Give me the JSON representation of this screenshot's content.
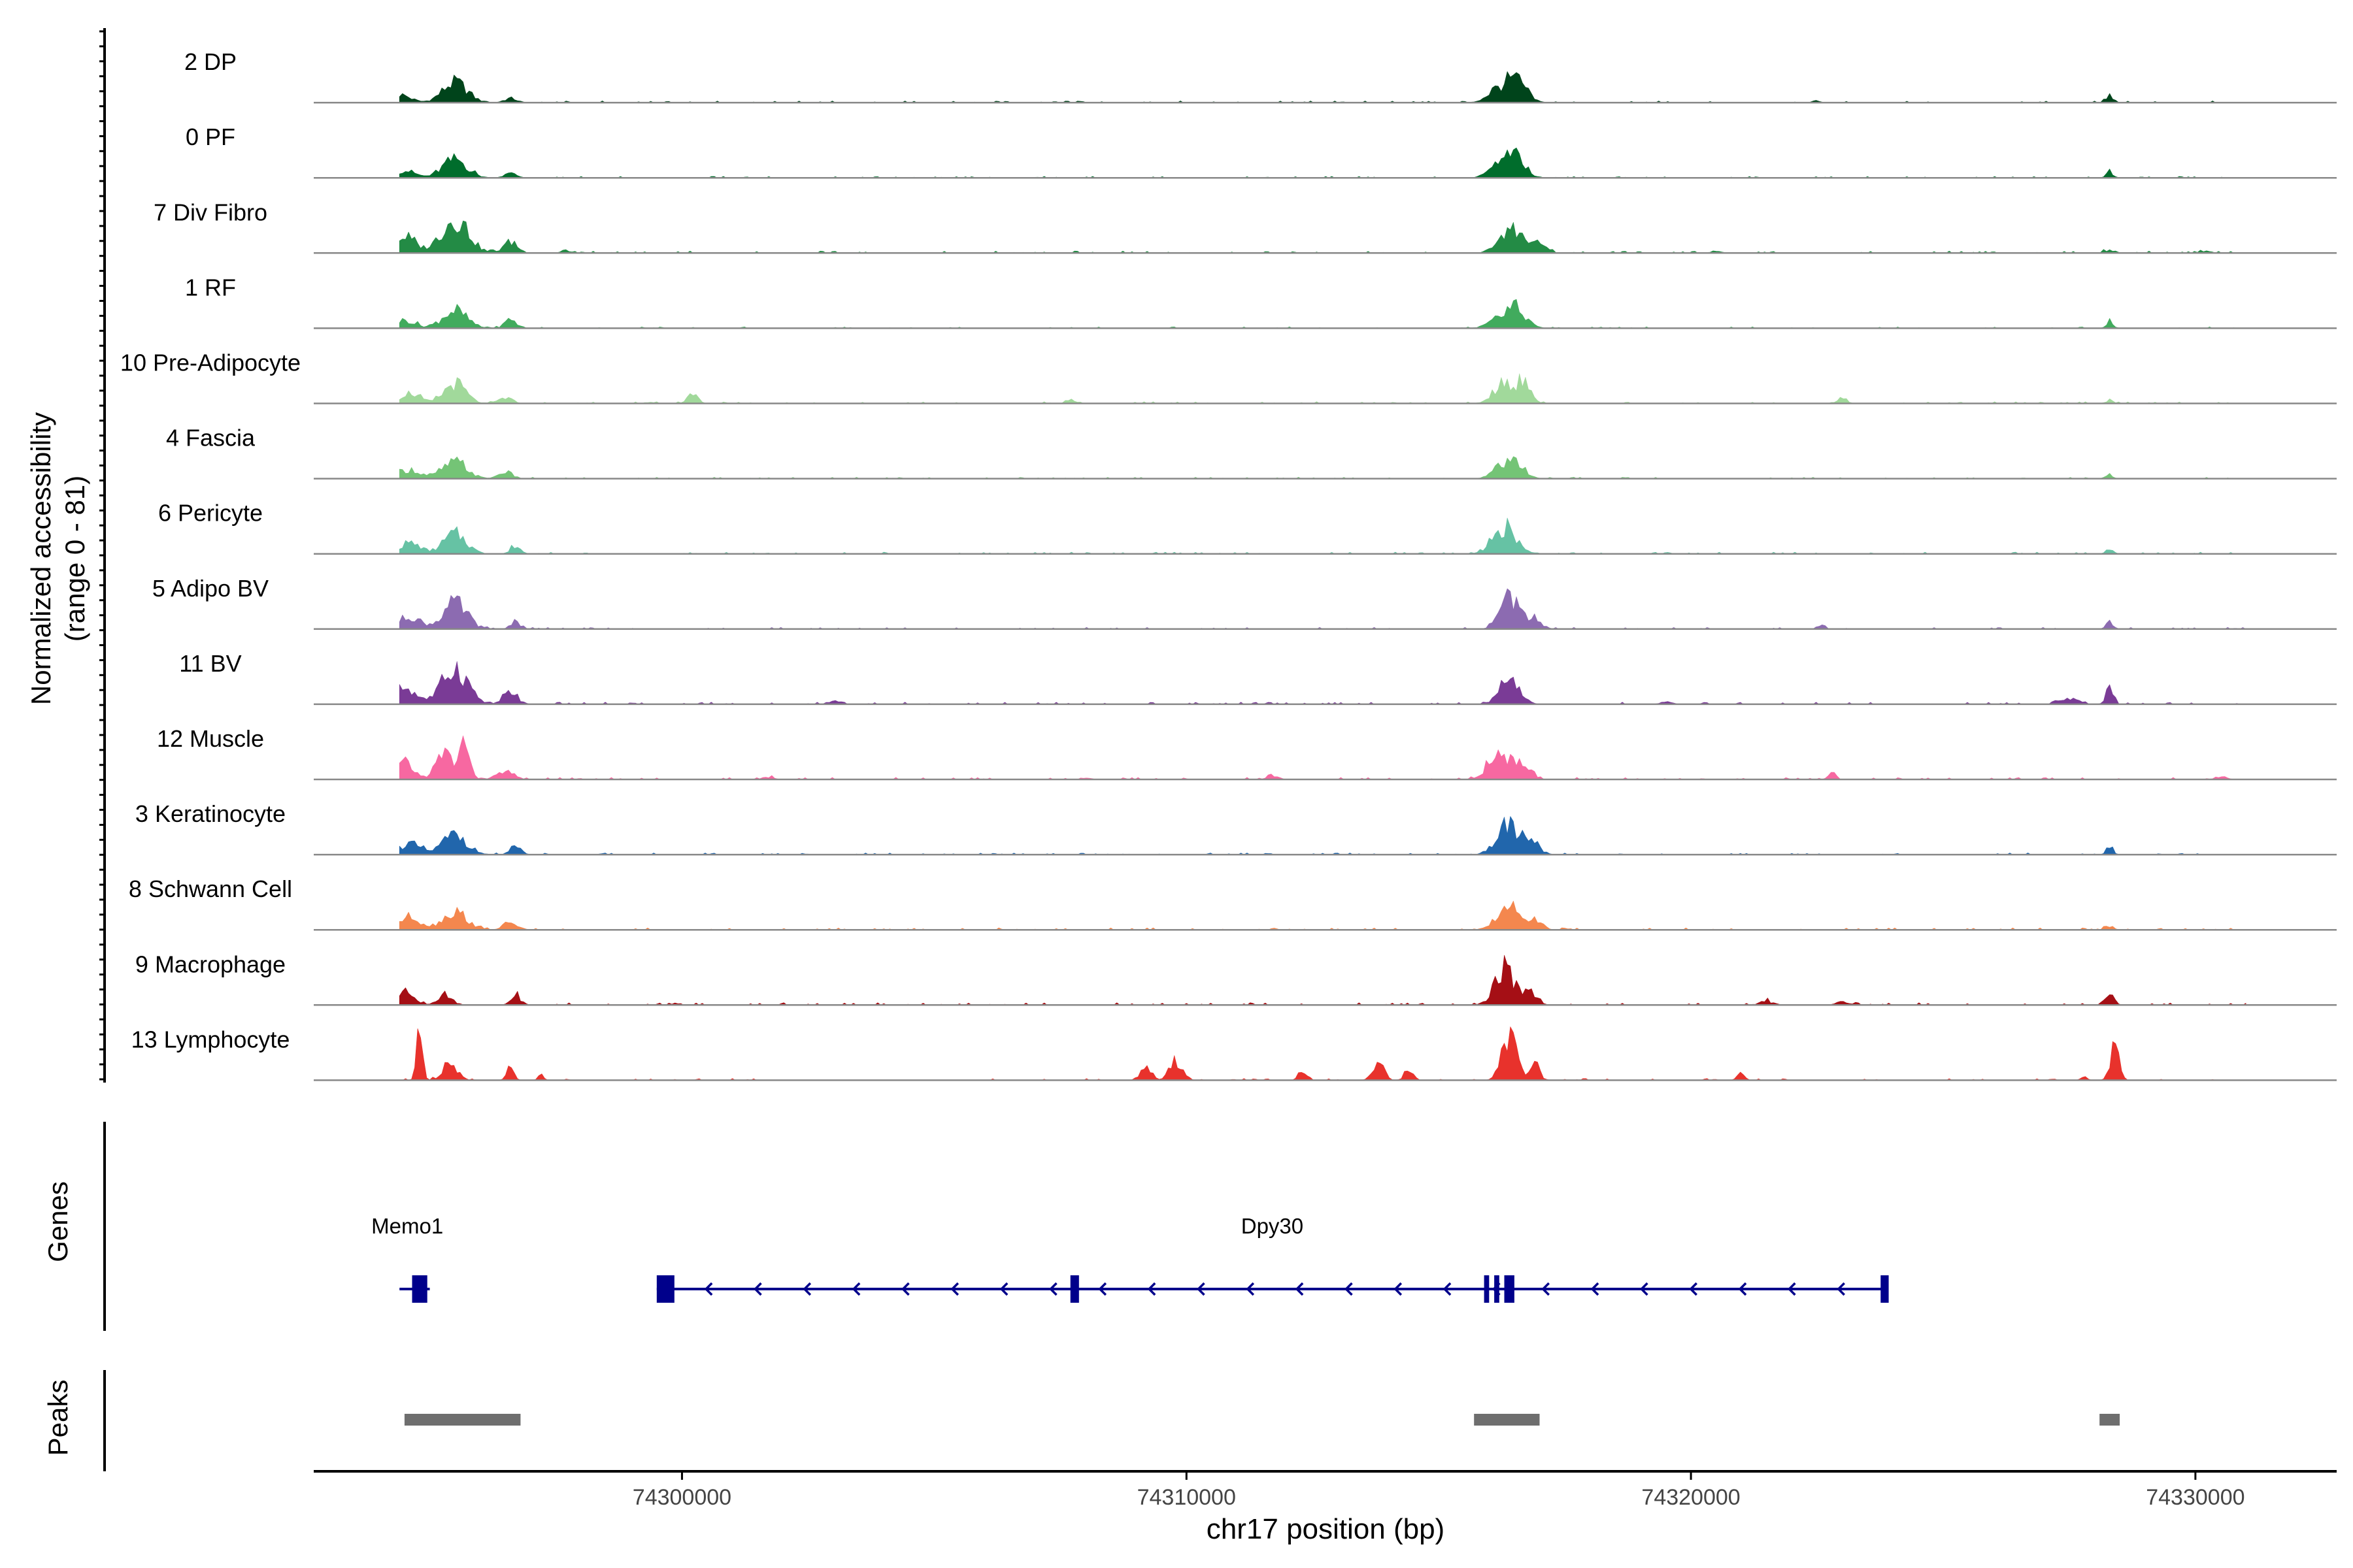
{
  "chart_data": {
    "type": "area",
    "chromosome": "chr17",
    "xlabel": "chr17 position (bp)",
    "ylabel_line1": "Normalized accessibility",
    "ylabel_line2": "(range 0 - 81)",
    "xlim": [
      74292700,
      74332800
    ],
    "ylim": [
      0,
      81
    ],
    "x_ticks": [
      74300000,
      74310000,
      74320000,
      74330000
    ],
    "x_tick_labels": [
      "74300000",
      "74310000",
      "74320000",
      "74330000"
    ],
    "baseline_color": "#888888",
    "series": [
      {
        "name": "2 DP",
        "color": "#00441b",
        "peaks": [
          [
            74294400,
            0.22,
            300
          ],
          [
            74295500,
            0.55,
            350
          ],
          [
            74296600,
            0.12,
            180
          ],
          [
            74316500,
            0.65,
            300
          ],
          [
            74316100,
            0.25,
            260
          ],
          [
            74328300,
            0.2,
            100
          ],
          [
            74322500,
            0.05,
            120
          ]
        ],
        "noise": 0.03
      },
      {
        "name": "0 PF",
        "color": "#006d2c",
        "peaks": [
          [
            74294500,
            0.2,
            300
          ],
          [
            74295500,
            0.5,
            340
          ],
          [
            74296600,
            0.12,
            180
          ],
          [
            74316500,
            0.62,
            280
          ],
          [
            74316100,
            0.22,
            260
          ],
          [
            74328300,
            0.18,
            100
          ]
        ],
        "noise": 0.025
      },
      {
        "name": "7 Div Fibro",
        "color": "#238b45",
        "peaks": [
          [
            74294500,
            0.42,
            320
          ],
          [
            74295500,
            0.92,
            380
          ],
          [
            74296600,
            0.3,
            200
          ],
          [
            74297700,
            0.08,
            120
          ],
          [
            74316400,
            0.68,
            300
          ],
          [
            74316900,
            0.3,
            250
          ],
          [
            74320500,
            0.06,
            150
          ],
          [
            74328300,
            0.08,
            150
          ],
          [
            74330200,
            0.06,
            150
          ]
        ],
        "noise": 0.035
      },
      {
        "name": "1 RF",
        "color": "#41ab5d",
        "peaks": [
          [
            74294500,
            0.22,
            300
          ],
          [
            74295500,
            0.48,
            340
          ],
          [
            74296600,
            0.25,
            160
          ],
          [
            74316500,
            0.58,
            300
          ],
          [
            74316100,
            0.22,
            250
          ],
          [
            74328300,
            0.2,
            100
          ]
        ],
        "noise": 0.025
      },
      {
        "name": "10 Pre-Adipocyte",
        "color": "#a1d99b",
        "peaks": [
          [
            74294600,
            0.28,
            280
          ],
          [
            74295500,
            0.55,
            300
          ],
          [
            74296500,
            0.15,
            200
          ],
          [
            74300200,
            0.3,
            140
          ],
          [
            74307700,
            0.12,
            120
          ],
          [
            74316300,
            0.62,
            280
          ],
          [
            74316700,
            0.48,
            200
          ],
          [
            74323000,
            0.18,
            120
          ],
          [
            74328300,
            0.1,
            100
          ]
        ],
        "noise": 0.03
      },
      {
        "name": "4 Fascia",
        "color": "#74c476",
        "peaks": [
          [
            74294600,
            0.25,
            300
          ],
          [
            74295500,
            0.45,
            340
          ],
          [
            74296500,
            0.18,
            200
          ],
          [
            74316400,
            0.55,
            320
          ],
          [
            74328300,
            0.12,
            100
          ]
        ],
        "noise": 0.025
      },
      {
        "name": "6 Pericyte",
        "color": "#66c2a4",
        "peaks": [
          [
            74294600,
            0.3,
            300
          ],
          [
            74295500,
            0.55,
            320
          ],
          [
            74296700,
            0.2,
            140
          ],
          [
            74316300,
            0.75,
            320
          ],
          [
            74328300,
            0.12,
            100
          ]
        ],
        "noise": 0.03
      },
      {
        "name": "5 Adipo BV",
        "color": "#8c6bb1",
        "peaks": [
          [
            74294600,
            0.35,
            300
          ],
          [
            74295500,
            0.7,
            340
          ],
          [
            74296700,
            0.2,
            150
          ],
          [
            74316400,
            0.9,
            260
          ],
          [
            74316900,
            0.25,
            200
          ],
          [
            74322600,
            0.1,
            100
          ],
          [
            74328300,
            0.18,
            100
          ]
        ],
        "noise": 0.03
      },
      {
        "name": "11 BV",
        "color": "#7a3b96",
        "peaks": [
          [
            74294500,
            0.45,
            320
          ],
          [
            74295500,
            1.0,
            360
          ],
          [
            74296600,
            0.3,
            200
          ],
          [
            74303000,
            0.1,
            150
          ],
          [
            74316400,
            0.6,
            280
          ],
          [
            74319500,
            0.08,
            150
          ],
          [
            74328300,
            0.45,
            100
          ],
          [
            74327500,
            0.15,
            250
          ]
        ],
        "noise": 0.035
      },
      {
        "name": "12 Muscle",
        "color": "#f768a1",
        "peaks": [
          [
            74294500,
            0.45,
            250
          ],
          [
            74295300,
            0.7,
            250
          ],
          [
            74295700,
            1.05,
            130
          ],
          [
            74296500,
            0.2,
            250
          ],
          [
            74301700,
            0.08,
            150
          ],
          [
            74311700,
            0.12,
            150
          ],
          [
            74316200,
            0.8,
            300
          ],
          [
            74316700,
            0.45,
            200
          ],
          [
            74322800,
            0.18,
            100
          ],
          [
            74330500,
            0.08,
            150
          ]
        ],
        "noise": 0.035
      },
      {
        "name": "3 Keratinocyte",
        "color": "#2166ac",
        "peaks": [
          [
            74294600,
            0.3,
            300
          ],
          [
            74295500,
            0.55,
            340
          ],
          [
            74296700,
            0.25,
            140
          ],
          [
            74316400,
            0.85,
            320
          ],
          [
            74316900,
            0.25,
            200
          ],
          [
            74328300,
            0.2,
            100
          ]
        ],
        "noise": 0.03
      },
      {
        "name": "8 Schwann Cell",
        "color": "#f4874e",
        "peaks": [
          [
            74294600,
            0.35,
            320
          ],
          [
            74295500,
            0.5,
            340
          ],
          [
            74296600,
            0.2,
            200
          ],
          [
            74316400,
            0.68,
            320
          ],
          [
            74316900,
            0.25,
            200
          ],
          [
            74328300,
            0.12,
            100
          ]
        ],
        "noise": 0.035
      },
      {
        "name": "9 Macrophage",
        "color": "#a50f15",
        "peaks": [
          [
            74294500,
            0.35,
            280
          ],
          [
            74295300,
            0.28,
            200
          ],
          [
            74296700,
            0.3,
            140
          ],
          [
            74316300,
            1.0,
            260
          ],
          [
            74316800,
            0.45,
            200
          ],
          [
            74321500,
            0.1,
            200
          ],
          [
            74323000,
            0.08,
            200
          ],
          [
            74328300,
            0.28,
            120
          ]
        ],
        "noise": 0.04
      },
      {
        "name": "13 Lymphocyte",
        "color": "#e8322c",
        "peaks": [
          [
            74294800,
            1.7,
            80
          ],
          [
            74295400,
            0.55,
            200
          ],
          [
            74296600,
            0.35,
            100
          ],
          [
            74297200,
            0.15,
            80
          ],
          [
            74309800,
            0.55,
            180
          ],
          [
            74309200,
            0.35,
            150
          ],
          [
            74312300,
            0.3,
            100
          ],
          [
            74313800,
            0.55,
            150
          ],
          [
            74314400,
            0.3,
            120
          ],
          [
            74316400,
            1.3,
            200
          ],
          [
            74316900,
            0.4,
            150
          ],
          [
            74321000,
            0.2,
            100
          ],
          [
            74328400,
            0.85,
            120
          ],
          [
            74327800,
            0.15,
            80
          ]
        ],
        "noise": 0.03
      }
    ],
    "genes": {
      "label": "Genes",
      "color": "#00008b",
      "items": [
        {
          "name": "Memo1",
          "label_x": 74294400,
          "start": 74294400,
          "end": 74295000,
          "strand": "-",
          "exons": [
            [
              74294650,
              74294950
            ]
          ]
        },
        {
          "name": "Dpy30",
          "label_x": 74311700,
          "start": 74299500,
          "end": 74323900,
          "strand": "-",
          "exons": [
            [
              74299500,
              74299850
            ],
            [
              74307700,
              74307870
            ],
            [
              74315900,
              74316000
            ],
            [
              74316100,
              74316200
            ],
            [
              74316300,
              74316500
            ],
            [
              74323760,
              74323920
            ]
          ]
        }
      ]
    },
    "peaks_track": {
      "label": "Peaks",
      "color": "#6e6e6e",
      "regions": [
        [
          74294500,
          74296800
        ],
        [
          74315700,
          74317000
        ],
        [
          74328100,
          74328500
        ]
      ]
    }
  }
}
